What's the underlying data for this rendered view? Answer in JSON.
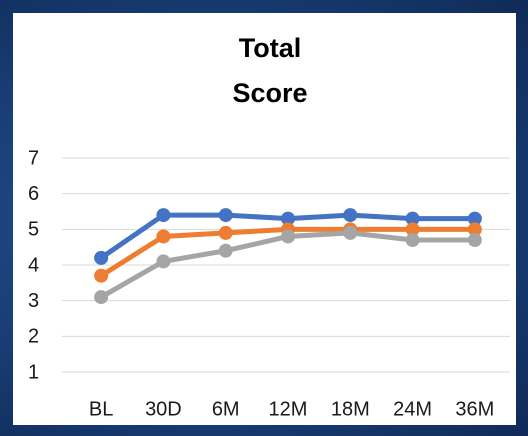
{
  "chart_data": {
    "type": "line",
    "title": "Total Score",
    "categories": [
      "BL",
      "30D",
      "6M",
      "12M",
      "18M",
      "24M",
      "36M"
    ],
    "series": [
      {
        "color": "#4472c4",
        "values": [
          4.2,
          5.4,
          5.4,
          5.3,
          5.4,
          5.3,
          5.3
        ]
      },
      {
        "color": "#ed7d31",
        "values": [
          3.7,
          4.8,
          4.9,
          5.0,
          5.0,
          5.0,
          5.0
        ]
      },
      {
        "color": "#a5a5a5",
        "values": [
          3.1,
          4.1,
          4.4,
          4.8,
          4.9,
          4.7,
          4.7
        ]
      }
    ],
    "ylim": [
      1,
      7
    ],
    "yticks": [
      1,
      2,
      3,
      4,
      5,
      6,
      7
    ],
    "grid": true
  }
}
